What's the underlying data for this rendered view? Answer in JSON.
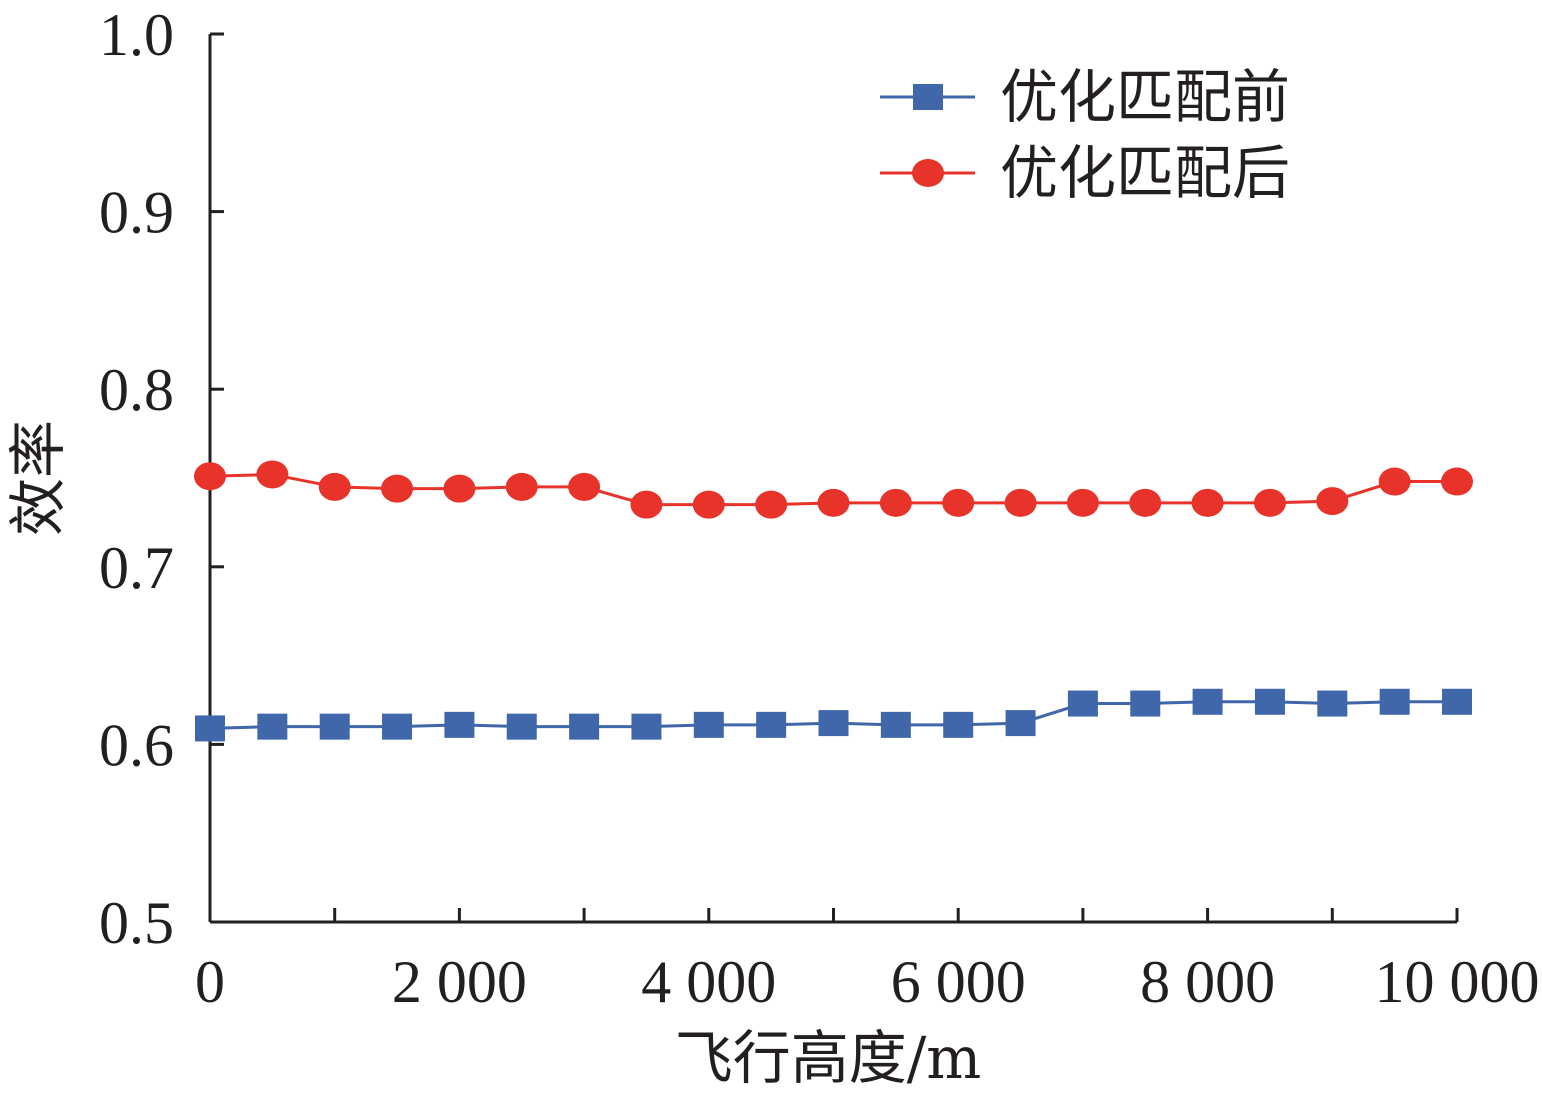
{
  "chart_data": {
    "type": "line",
    "xlabel": "飞行高度/m",
    "ylabel": "效率",
    "xlim": [
      0,
      10000
    ],
    "ylim": [
      0.5,
      1.0
    ],
    "x_ticks": [
      {
        "value": 0,
        "label": "0"
      },
      {
        "value": 2000,
        "label": "2 000"
      },
      {
        "value": 4000,
        "label": "4 000"
      },
      {
        "value": 6000,
        "label": "6 000"
      },
      {
        "value": 8000,
        "label": "8 000"
      },
      {
        "value": 10000,
        "label": "10 000"
      }
    ],
    "y_ticks": [
      {
        "value": 0.5,
        "label": "0.5"
      },
      {
        "value": 0.6,
        "label": "0.6"
      },
      {
        "value": 0.7,
        "label": "0.7"
      },
      {
        "value": 0.8,
        "label": "0.8"
      },
      {
        "value": 0.9,
        "label": "0.9"
      },
      {
        "value": 1.0,
        "label": "1.0"
      }
    ],
    "grid": false,
    "legend_position": "top-right",
    "x": [
      0,
      500,
      1000,
      1500,
      2000,
      2500,
      3000,
      3500,
      4000,
      4500,
      5000,
      5500,
      6000,
      6500,
      7000,
      7500,
      8000,
      8500,
      9000,
      9500,
      10000
    ],
    "series": [
      {
        "name": "优化匹配前",
        "marker": "square",
        "color": "#3f67a9",
        "values": [
          0.609,
          0.61,
          0.61,
          0.61,
          0.611,
          0.61,
          0.61,
          0.61,
          0.611,
          0.611,
          0.612,
          0.611,
          0.611,
          0.612,
          0.623,
          0.623,
          0.624,
          0.624,
          0.623,
          0.624,
          0.624
        ]
      },
      {
        "name": "优化匹配后",
        "marker": "circle",
        "color": "#e8332b",
        "values": [
          0.751,
          0.752,
          0.745,
          0.744,
          0.744,
          0.745,
          0.745,
          0.735,
          0.735,
          0.735,
          0.736,
          0.736,
          0.736,
          0.736,
          0.736,
          0.736,
          0.736,
          0.736,
          0.737,
          0.748,
          0.748
        ]
      }
    ]
  }
}
